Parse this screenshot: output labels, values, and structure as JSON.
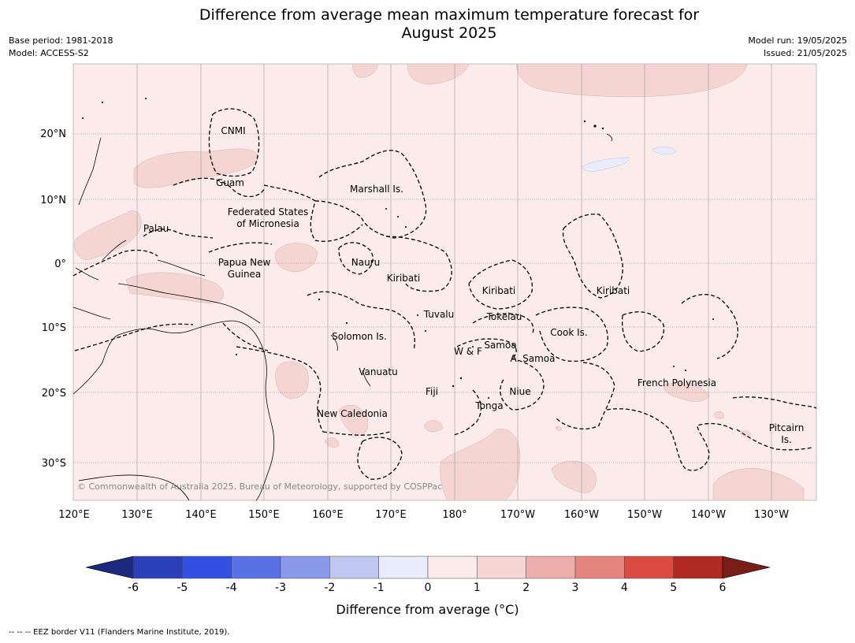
{
  "title_line1": "Difference from average mean maximum temperature forecast for",
  "title_line2": "August 2025",
  "meta_left": {
    "base_period": "Base period: 1981-2018",
    "model": "Model: ACCESS-S2"
  },
  "meta_right": {
    "model_run": "Model run: 19/05/2025",
    "issued": "Issued: 21/05/2025"
  },
  "lon_labels": [
    "120°E",
    "130°E",
    "140°E",
    "150°E",
    "160°E",
    "170°E",
    "180°",
    "170°W",
    "160°W",
    "150°W",
    "140°W",
    "130°W"
  ],
  "lat_labels": [
    "20°N",
    "10°N",
    "0°",
    "10°S",
    "20°S",
    "30°S"
  ],
  "regions": [
    "CNMI",
    "Guam",
    "Marshall Is.",
    "Federated States",
    "of Micronesia",
    "Palau",
    "Papua New",
    "Guinea",
    "Nauru",
    "Kiribati",
    "Kiribati",
    "Kiribati",
    "Tuvalu",
    "Tokelau",
    "Cook Is.",
    "Solomon Is.",
    "W & F",
    "Samoa",
    "A. Samoa",
    "Vanuatu",
    "Fiji",
    "Niue",
    "Tonga",
    "French Polynesia",
    "New Caledonia",
    "Pitcairn",
    "Is."
  ],
  "copyright": "© Commonwealth of Australia 2025, Bureau of Meteorology, supported by COSPPac",
  "colorbar": {
    "ticks": [
      "-6",
      "-5",
      "-4",
      "-3",
      "-2",
      "-1",
      "0",
      "1",
      "2",
      "3",
      "4",
      "5",
      "6"
    ],
    "colors": [
      "#1b2a7c",
      "#2a3fb8",
      "#3450e0",
      "#5a70e5",
      "#8a9aeb",
      "#c0c8f2",
      "#e8ecfc",
      "#fbebea",
      "#f6d6d4",
      "#eeaeab",
      "#e6847f",
      "#dc4b41",
      "#ae2a22",
      "#7a1c17"
    ],
    "label": "Difference from average (°C)"
  },
  "map_colors": {
    "background": "#fbebea",
    "warm_patch": "#f4d5d1",
    "cool_patch": "#e8ecfc"
  },
  "footnote": "-- -- -- EEZ border V11 (Flanders Marine Institute, 2019)."
}
